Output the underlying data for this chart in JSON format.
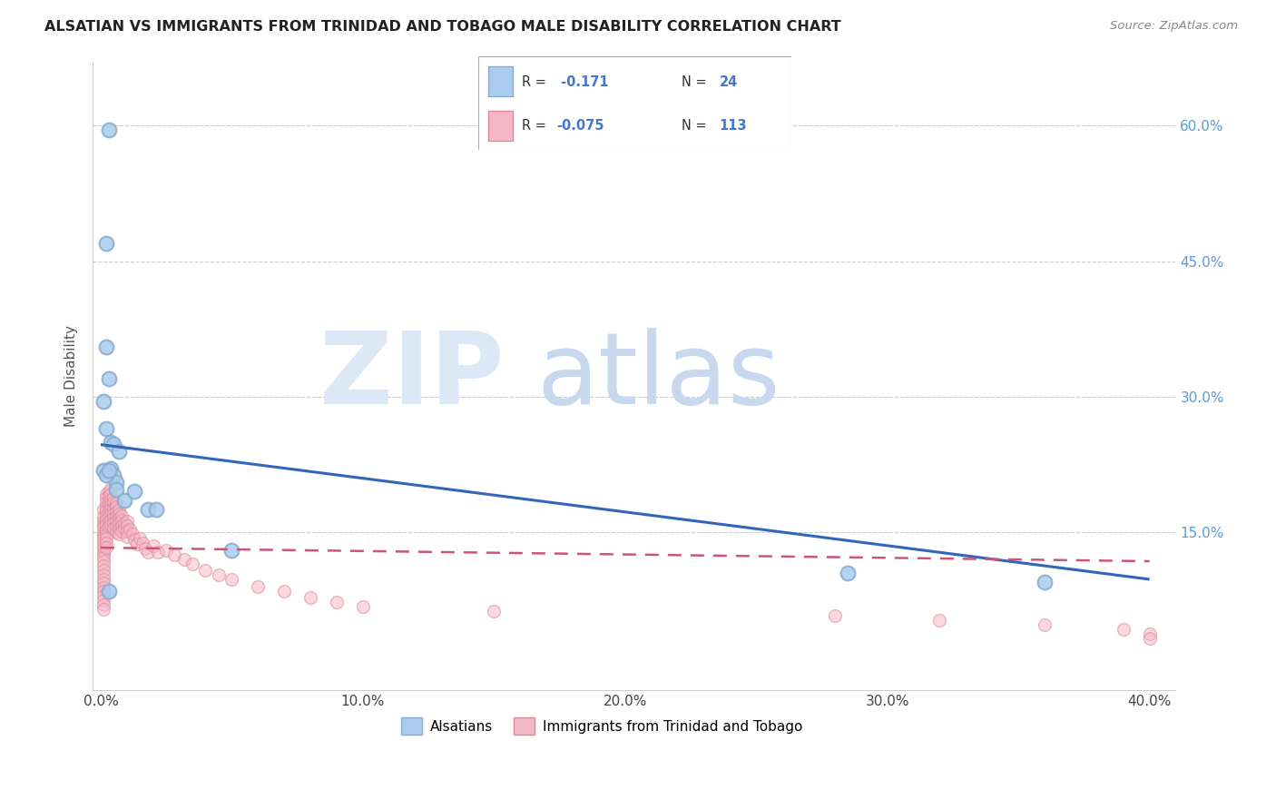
{
  "title": "ALSATIAN VS IMMIGRANTS FROM TRINIDAD AND TOBAGO MALE DISABILITY CORRELATION CHART",
  "source": "Source: ZipAtlas.com",
  "ylabel": "Male Disability",
  "xlim": [
    -0.003,
    0.41
  ],
  "ylim": [
    -0.025,
    0.67
  ],
  "xtick_vals": [
    0.0,
    0.1,
    0.2,
    0.3,
    0.4
  ],
  "xticklabels": [
    "0.0%",
    "10.0%",
    "20.0%",
    "30.0%",
    "40.0%"
  ],
  "ytick_vals": [
    0.15,
    0.3,
    0.45,
    0.6
  ],
  "yticklabels": [
    "15.0%",
    "30.0%",
    "45.0%",
    "60.0%"
  ],
  "blue_face": "#aaccee",
  "blue_edge": "#88aacc",
  "blue_line": "#3366bb",
  "pink_face": "#f5b8c8",
  "pink_edge": "#dd8899",
  "pink_line": "#cc5577",
  "R_blue": -0.171,
  "N_blue": 24,
  "R_pink": -0.075,
  "N_pink": 113,
  "blue_line_start_y": 0.247,
  "blue_line_end_y": 0.098,
  "pink_line_start_y": 0.133,
  "pink_line_end_y": 0.118,
  "alsatian_x": [
    0.003,
    0.002,
    0.002,
    0.003,
    0.001,
    0.002,
    0.004,
    0.005,
    0.004,
    0.005,
    0.006,
    0.007,
    0.006,
    0.009,
    0.013,
    0.001,
    0.002,
    0.003,
    0.285,
    0.36,
    0.05,
    0.018,
    0.021,
    0.003
  ],
  "alsatian_y": [
    0.595,
    0.47,
    0.355,
    0.32,
    0.295,
    0.265,
    0.25,
    0.248,
    0.22,
    0.213,
    0.205,
    0.24,
    0.197,
    0.185,
    0.195,
    0.218,
    0.213,
    0.218,
    0.105,
    0.095,
    0.13,
    0.175,
    0.175,
    0.085
  ],
  "trinidad_x": [
    0.001,
    0.001,
    0.001,
    0.001,
    0.001,
    0.001,
    0.001,
    0.001,
    0.001,
    0.001,
    0.001,
    0.001,
    0.001,
    0.001,
    0.001,
    0.001,
    0.001,
    0.001,
    0.001,
    0.001,
    0.001,
    0.001,
    0.001,
    0.001,
    0.001,
    0.002,
    0.002,
    0.002,
    0.002,
    0.002,
    0.002,
    0.002,
    0.002,
    0.002,
    0.002,
    0.002,
    0.002,
    0.002,
    0.003,
    0.003,
    0.003,
    0.003,
    0.003,
    0.003,
    0.003,
    0.003,
    0.004,
    0.004,
    0.004,
    0.004,
    0.004,
    0.004,
    0.004,
    0.004,
    0.005,
    0.005,
    0.005,
    0.005,
    0.005,
    0.005,
    0.005,
    0.006,
    0.006,
    0.006,
    0.006,
    0.006,
    0.006,
    0.006,
    0.007,
    0.007,
    0.007,
    0.007,
    0.007,
    0.007,
    0.008,
    0.008,
    0.008,
    0.008,
    0.009,
    0.009,
    0.01,
    0.01,
    0.01,
    0.01,
    0.011,
    0.012,
    0.013,
    0.014,
    0.015,
    0.016,
    0.017,
    0.018,
    0.02,
    0.022,
    0.025,
    0.028,
    0.032,
    0.035,
    0.04,
    0.045,
    0.05,
    0.06,
    0.07,
    0.08,
    0.09,
    0.1,
    0.15,
    0.28,
    0.32,
    0.36,
    0.39,
    0.4,
    0.4
  ],
  "trinidad_y": [
    0.175,
    0.167,
    0.162,
    0.158,
    0.155,
    0.15,
    0.146,
    0.143,
    0.138,
    0.134,
    0.13,
    0.126,
    0.122,
    0.118,
    0.113,
    0.108,
    0.103,
    0.098,
    0.094,
    0.089,
    0.085,
    0.08,
    0.075,
    0.07,
    0.065,
    0.192,
    0.188,
    0.183,
    0.178,
    0.174,
    0.168,
    0.163,
    0.158,
    0.152,
    0.147,
    0.143,
    0.138,
    0.133,
    0.195,
    0.19,
    0.183,
    0.178,
    0.173,
    0.167,
    0.162,
    0.157,
    0.198,
    0.192,
    0.186,
    0.18,
    0.175,
    0.17,
    0.163,
    0.158,
    0.188,
    0.183,
    0.176,
    0.17,
    0.165,
    0.16,
    0.154,
    0.182,
    0.178,
    0.172,
    0.167,
    0.162,
    0.156,
    0.15,
    0.175,
    0.17,
    0.165,
    0.16,
    0.154,
    0.148,
    0.168,
    0.163,
    0.157,
    0.151,
    0.16,
    0.154,
    0.162,
    0.157,
    0.151,
    0.145,
    0.153,
    0.148,
    0.142,
    0.137,
    0.143,
    0.138,
    0.132,
    0.128,
    0.135,
    0.128,
    0.13,
    0.125,
    0.12,
    0.115,
    0.108,
    0.103,
    0.098,
    0.09,
    0.085,
    0.078,
    0.073,
    0.068,
    0.063,
    0.058,
    0.053,
    0.048,
    0.043,
    0.038,
    0.033
  ]
}
